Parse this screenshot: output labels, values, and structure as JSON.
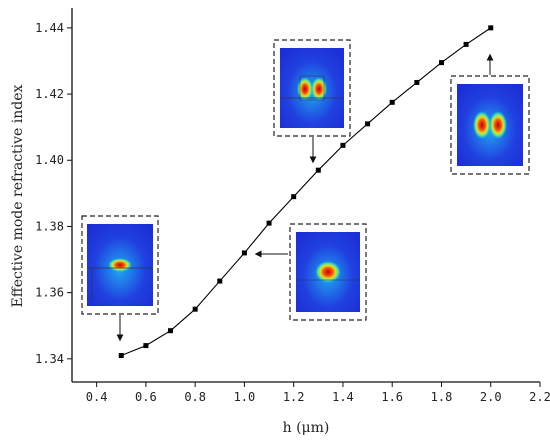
{
  "chart_data": {
    "type": "line",
    "title": "",
    "xlabel": "h (μm)",
    "ylabel": "Effective mode refractive index",
    "xlim": [
      0.3,
      2.2
    ],
    "ylim": [
      1.333,
      1.446
    ],
    "x_ticks": [
      "0.4",
      "0.6",
      "0.8",
      "1.0",
      "1.2",
      "1.4",
      "1.6",
      "1.8",
      "2.0",
      "2.2"
    ],
    "y_ticks": [
      "1.34",
      "1.36",
      "1.38",
      "1.40",
      "1.42",
      "1.44"
    ],
    "series": [
      {
        "marker": "square",
        "color": "#000000",
        "x": [
          0.5,
          0.6,
          0.7,
          0.8,
          0.9,
          1.0,
          1.1,
          1.2,
          1.3,
          1.4,
          1.5,
          1.6,
          1.7,
          1.8,
          1.9,
          2.0
        ],
        "y": [
          1.341,
          1.344,
          1.3485,
          1.355,
          1.3635,
          1.372,
          1.381,
          1.389,
          1.397,
          1.4045,
          1.411,
          1.4175,
          1.4235,
          1.4295,
          1.435,
          1.44
        ]
      }
    ],
    "grid": false,
    "legend": "none",
    "insets": [
      {
        "name": "mode-profile-h0.5",
        "points_to": [
          0.5,
          1.341
        ],
        "mode": "hybrid-single-lobe"
      },
      {
        "name": "mode-profile-h1.0",
        "points_to": [
          1.0,
          1.372
        ],
        "mode": "single-lobe"
      },
      {
        "name": "mode-profile-h1.3",
        "points_to": [
          1.3,
          1.397
        ],
        "mode": "double-lobe"
      },
      {
        "name": "mode-profile-h2.0",
        "points_to": [
          2.0,
          1.44
        ],
        "mode": "double-lobe"
      }
    ],
    "colormap": [
      "#1c2fd6",
      "#1fa8f0",
      "#35e0b0",
      "#e8e020",
      "#f05010",
      "#c80000"
    ]
  }
}
